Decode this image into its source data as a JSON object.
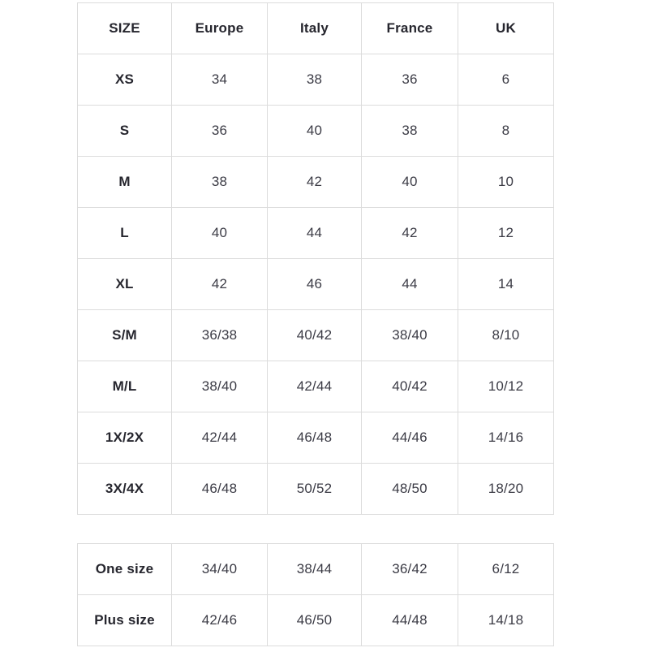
{
  "page": {
    "background_color": "#ffffff",
    "border_color": "#dcdcdc",
    "header_text_color": "#26262e",
    "cell_text_color": "#3b3b45"
  },
  "size_table": {
    "headers": [
      "SIZE",
      "Europe",
      "Italy",
      "France",
      "UK"
    ],
    "rows": [
      {
        "label": "XS",
        "values": [
          "34",
          "38",
          "36",
          "6"
        ]
      },
      {
        "label": "S",
        "values": [
          "36",
          "40",
          "38",
          "8"
        ]
      },
      {
        "label": "M",
        "values": [
          "38",
          "42",
          "40",
          "10"
        ]
      },
      {
        "label": "L",
        "values": [
          "40",
          "44",
          "42",
          "12"
        ]
      },
      {
        "label": "XL",
        "values": [
          "42",
          "46",
          "44",
          "14"
        ]
      },
      {
        "label": "S/M",
        "values": [
          "36/38",
          "40/42",
          "38/40",
          "8/10"
        ]
      },
      {
        "label": "M/L",
        "values": [
          "38/40",
          "42/44",
          "40/42",
          "10/12"
        ]
      },
      {
        "label": "1X/2X",
        "values": [
          "42/44",
          "46/48",
          "44/46",
          "14/16"
        ]
      },
      {
        "label": "3X/4X",
        "values": [
          "46/48",
          "50/52",
          "48/50",
          "18/20"
        ]
      }
    ]
  },
  "special_size_table": {
    "rows": [
      {
        "label": "One size",
        "values": [
          "34/40",
          "38/44",
          "36/42",
          "6/12"
        ]
      },
      {
        "label": "Plus size",
        "values": [
          "42/46",
          "46/50",
          "44/48",
          "14/18"
        ]
      }
    ]
  }
}
